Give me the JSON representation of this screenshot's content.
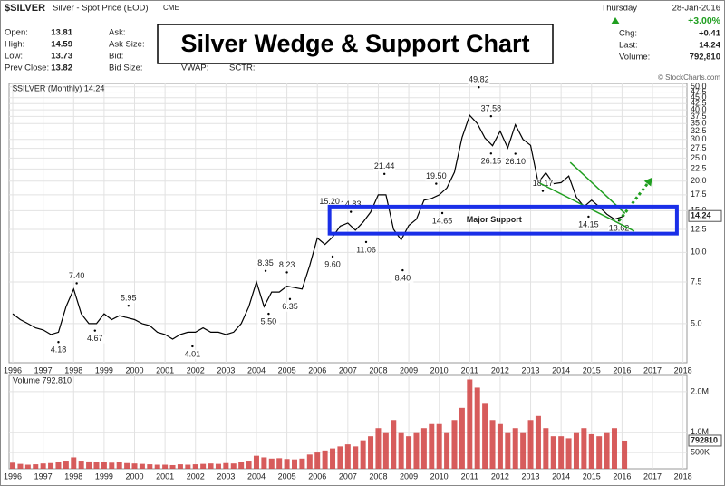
{
  "header": {
    "symbol": "$SILVER",
    "name": "Silver - Spot Price (EOD)",
    "exchange": "CME",
    "rows": [
      {
        "label": "Open:",
        "value": 13.81,
        "mid_label": "Ask:"
      },
      {
        "label": "High:",
        "value": 14.59,
        "mid_label": "Ask Size:"
      },
      {
        "label": "Low:",
        "value": 13.73,
        "mid_label": "Bid:"
      },
      {
        "label": "Prev Close:",
        "value": 13.82,
        "mid_label": "Bid Size:"
      }
    ],
    "vwap": "VWAP:",
    "sctr": "SCTR:",
    "day": "Thursday",
    "date": "28-Jan-2016",
    "change_pct": "+3.00%",
    "chg_label": "Chg:",
    "chg": "+0.41",
    "last_label": "Last:",
    "last": 14.24,
    "volume_label": "Volume:",
    "volume": "792,810",
    "headline": "Silver Wedge & Support Chart",
    "credit": "© StockCharts.com"
  },
  "chart_data": [
    {
      "type": "line",
      "title": "$SILVER (Monthly) 14.24",
      "log_scale": true,
      "grid": true,
      "color": "#000000",
      "x": [
        1996,
        1996.25,
        1996.5,
        1996.75,
        1997,
        1997.25,
        1997.5,
        1997.75,
        1998,
        1998.25,
        1998.5,
        1998.75,
        1999,
        1999.25,
        1999.5,
        1999.75,
        2000,
        2000.25,
        2000.5,
        2000.75,
        2001,
        2001.25,
        2001.5,
        2001.75,
        2002,
        2002.25,
        2002.5,
        2002.75,
        2003,
        2003.25,
        2003.5,
        2003.75,
        2004,
        2004.25,
        2004.5,
        2004.75,
        2005,
        2005.25,
        2005.5,
        2005.75,
        2006,
        2006.25,
        2006.5,
        2006.75,
        2007,
        2007.25,
        2007.5,
        2007.75,
        2008,
        2008.25,
        2008.5,
        2008.75,
        2009,
        2009.25,
        2009.5,
        2009.75,
        2010,
        2010.25,
        2010.5,
        2010.75,
        2011,
        2011.25,
        2011.5,
        2011.75,
        2012,
        2012.25,
        2012.5,
        2012.75,
        2013,
        2013.25,
        2013.5,
        2013.75,
        2014,
        2014.25,
        2014.5,
        2014.75,
        2015,
        2015.25,
        2015.5,
        2015.75,
        2016.08
      ],
      "values": [
        5.5,
        5.2,
        5.0,
        4.8,
        4.7,
        4.5,
        4.6,
        5.9,
        7.0,
        5.5,
        5.0,
        5.0,
        5.5,
        5.2,
        5.4,
        5.3,
        5.2,
        5.0,
        4.9,
        4.6,
        4.5,
        4.3,
        4.5,
        4.6,
        4.6,
        4.8,
        4.6,
        4.6,
        4.5,
        4.6,
        5.0,
        5.9,
        7.5,
        5.9,
        6.8,
        6.8,
        7.2,
        7.1,
        7.0,
        8.8,
        11.5,
        10.8,
        11.6,
        12.9,
        13.3,
        12.4,
        13.4,
        14.8,
        17.5,
        17.5,
        12.5,
        11.3,
        13.0,
        13.8,
        16.6,
        16.9,
        17.5,
        18.7,
        21.8,
        30.6,
        37.9,
        35.0,
        30.4,
        28.2,
        32.5,
        27.6,
        34.6,
        30.0,
        28.3,
        19.7,
        21.7,
        19.5,
        19.7,
        21.0,
        17.1,
        15.6,
        16.6,
        15.6,
        14.5,
        13.8,
        14.24
      ],
      "xlim": [
        1995.88,
        2018.13
      ],
      "ylim": [
        3.42,
        51.7
      ],
      "xticks": [
        1996,
        1997,
        1998,
        1999,
        2000,
        2001,
        2002,
        2003,
        2004,
        2005,
        2006,
        2007,
        2008,
        2009,
        2010,
        2011,
        2012,
        2013,
        2014,
        2015,
        2016,
        2017,
        2018
      ],
      "yticks": [
        {
          "value": 5,
          "label": "5.0"
        },
        7.5,
        {
          "value": 10,
          "label": "10.0"
        },
        12.5,
        {
          "value": 15,
          "label": "15.0"
        },
        17.5,
        {
          "value": 20,
          "label": "20.0"
        },
        22.5,
        {
          "value": 25,
          "label": "25.0"
        },
        27.5,
        {
          "value": 30,
          "label": "30.0"
        },
        32.5,
        {
          "value": 35,
          "label": "35.0"
        },
        37.5,
        {
          "value": 40,
          "label": "40.0"
        },
        42.5,
        {
          "value": 45,
          "label": "45.0"
        },
        47.5,
        {
          "value": 50,
          "label": "50.0"
        }
      ],
      "last_value": 14.24,
      "annotations": [
        {
          "label": "4.18",
          "x": 1997.5,
          "y": 4.18,
          "pos": "below"
        },
        {
          "label": "7.40",
          "x": 1998.1,
          "y": 7.4,
          "pos": "above"
        },
        {
          "label": "4.67",
          "x": 1998.7,
          "y": 4.67,
          "pos": "below"
        },
        {
          "label": "5.95",
          "x": 1999.8,
          "y": 5.95,
          "pos": "above"
        },
        {
          "label": "4.01",
          "x": 2001.9,
          "y": 4.01,
          "pos": "below"
        },
        {
          "label": "8.35",
          "x": 2004.3,
          "y": 8.35,
          "pos": "above"
        },
        {
          "label": "5.50",
          "x": 2004.4,
          "y": 5.5,
          "pos": "below"
        },
        {
          "label": "8.23",
          "x": 2005.0,
          "y": 8.23,
          "pos": "above"
        },
        {
          "label": "6.35",
          "x": 2005.1,
          "y": 6.35,
          "pos": "below"
        },
        {
          "label": "15.20",
          "x": 2006.4,
          "y": 15.2,
          "pos": "above"
        },
        {
          "label": "9.60",
          "x": 2006.5,
          "y": 9.6,
          "pos": "below"
        },
        {
          "label": "14.83",
          "x": 2007.1,
          "y": 14.83,
          "pos": "above"
        },
        {
          "label": "11.06",
          "x": 2007.6,
          "y": 11.06,
          "pos": "below"
        },
        {
          "label": "21.44",
          "x": 2008.2,
          "y": 21.44,
          "pos": "above"
        },
        {
          "label": "8.40",
          "x": 2008.8,
          "y": 8.4,
          "pos": "below"
        },
        {
          "label": "19.50",
          "x": 2009.9,
          "y": 19.5,
          "pos": "above"
        },
        {
          "label": "14.65",
          "x": 2010.1,
          "y": 14.65,
          "pos": "below"
        },
        {
          "label": "49.82",
          "x": 2011.3,
          "y": 49.82,
          "pos": "above"
        },
        {
          "label": "37.58",
          "x": 2011.7,
          "y": 37.58,
          "pos": "above"
        },
        {
          "label": "26.15",
          "x": 2011.7,
          "y": 26.15,
          "pos": "below"
        },
        {
          "label": "26.10",
          "x": 2012.5,
          "y": 26.1,
          "pos": "below"
        },
        {
          "label": "18.17",
          "x": 2013.4,
          "y": 18.17,
          "pos": "above"
        },
        {
          "label": "14.15",
          "x": 2014.9,
          "y": 14.15,
          "pos": "below"
        },
        {
          "label": "13.62",
          "x": 2015.9,
          "y": 13.62,
          "pos": "below"
        }
      ],
      "support_box": {
        "label": "Major Support",
        "x": [
          2006.4,
          2017.8
        ],
        "y": [
          12,
          15.6
        ],
        "color": "#1a2fe8"
      },
      "wedge": {
        "color": "#1f9e1f",
        "lines": [
          [
            [
              2014.3,
              24
            ],
            [
              2016.1,
              14.6
            ]
          ],
          [
            [
              2013.3,
              19.6
            ],
            [
              2016.4,
              12.3
            ]
          ]
        ],
        "arrow": [
          [
            2015.9,
            13.6
          ],
          [
            2016.9,
            20
          ]
        ]
      }
    },
    {
      "type": "bar",
      "title": "Volume 792,810",
      "grid": true,
      "color": "#d04040",
      "x": [
        1996,
        1996.25,
        1996.5,
        1996.75,
        1997,
        1997.25,
        1997.5,
        1997.75,
        1998,
        1998.25,
        1998.5,
        1998.75,
        1999,
        1999.25,
        1999.5,
        1999.75,
        2000,
        2000.25,
        2000.5,
        2000.75,
        2001,
        2001.25,
        2001.5,
        2001.75,
        2002,
        2002.25,
        2002.5,
        2002.75,
        2003,
        2003.25,
        2003.5,
        2003.75,
        2004,
        2004.25,
        2004.5,
        2004.75,
        2005,
        2005.25,
        2005.5,
        2005.75,
        2006,
        2006.25,
        2006.5,
        2006.75,
        2007,
        2007.25,
        2007.5,
        2007.75,
        2008,
        2008.25,
        2008.5,
        2008.75,
        2009,
        2009.25,
        2009.5,
        2009.75,
        2010,
        2010.25,
        2010.5,
        2010.75,
        2011,
        2011.25,
        2011.5,
        2011.75,
        2012,
        2012.25,
        2012.5,
        2012.75,
        2013,
        2013.25,
        2013.5,
        2013.75,
        2014,
        2014.25,
        2014.5,
        2014.75,
        2015,
        2015.25,
        2015.5,
        2015.75,
        2016.08
      ],
      "values": [
        250000,
        220000,
        200000,
        210000,
        230000,
        240000,
        260000,
        300000,
        380000,
        300000,
        280000,
        260000,
        270000,
        250000,
        260000,
        240000,
        230000,
        220000,
        210000,
        200000,
        200000,
        190000,
        210000,
        200000,
        210000,
        220000,
        230000,
        220000,
        240000,
        230000,
        260000,
        300000,
        420000,
        380000,
        350000,
        360000,
        340000,
        330000,
        350000,
        450000,
        500000,
        550000,
        600000,
        650000,
        700000,
        650000,
        800000,
        900000,
        1100000,
        1000000,
        1300000,
        1000000,
        900000,
        1000000,
        1100000,
        1200000,
        1200000,
        1000000,
        1300000,
        1600000,
        2300000,
        2100000,
        1700000,
        1300000,
        1200000,
        1000000,
        1100000,
        1000000,
        1300000,
        1400000,
        1100000,
        900000,
        900000,
        850000,
        1000000,
        1100000,
        950000,
        900000,
        1000000,
        1100000,
        792810
      ],
      "xlim": [
        1995.88,
        2018.13
      ],
      "ylim": [
        100000,
        2400000
      ],
      "xticks": [
        1996,
        1997,
        1998,
        1999,
        2000,
        2001,
        2002,
        2003,
        2004,
        2005,
        2006,
        2007,
        2008,
        2009,
        2010,
        2011,
        2012,
        2013,
        2014,
        2015,
        2016,
        2017,
        2018
      ],
      "yticks": [
        {
          "value": 500000,
          "label": "500K"
        },
        {
          "value": 1000000,
          "label": "1.0M"
        },
        {
          "value": 2000000,
          "label": "2.0M"
        }
      ],
      "last_value": 792810
    }
  ]
}
